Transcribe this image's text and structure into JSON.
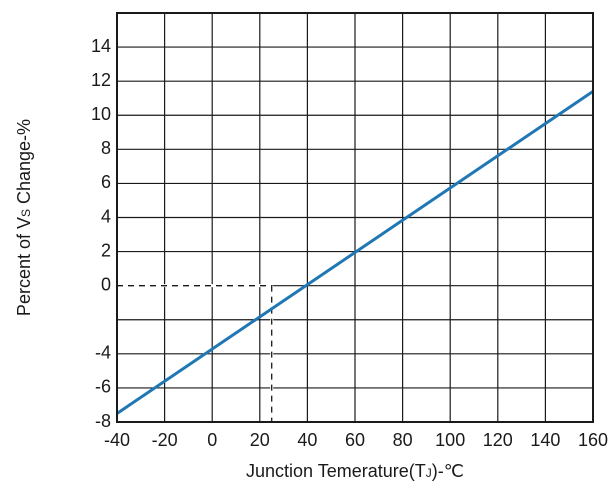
{
  "chart_data": {
    "type": "line",
    "title": "",
    "xlabel": {
      "pre": "Junction Temerature(T",
      "sub": "J",
      "post": ")-℃"
    },
    "ylabel": {
      "pre": "Percent of V",
      "sub": "S",
      "post": " Change-%"
    },
    "xlim": [
      -40,
      160
    ],
    "ylim": [
      -8,
      16
    ],
    "x_ticks": [
      -40,
      -20,
      0,
      20,
      40,
      60,
      80,
      100,
      120,
      140,
      160
    ],
    "y_ticks": [
      -8,
      -6,
      -4,
      -2,
      0,
      2,
      4,
      6,
      8,
      10,
      12,
      14
    ],
    "y_tick_labels": [
      "-8",
      "-6",
      "-4",
      "",
      "0",
      "2",
      "4",
      "6",
      "8",
      "10",
      "12",
      "14"
    ],
    "grid": true,
    "series": [
      {
        "color": "#1f77b4",
        "x": [
          -40,
          160
        ],
        "y": [
          -7.5,
          11.4
        ]
      }
    ],
    "reference_point": {
      "x": 25,
      "y": 0
    }
  }
}
